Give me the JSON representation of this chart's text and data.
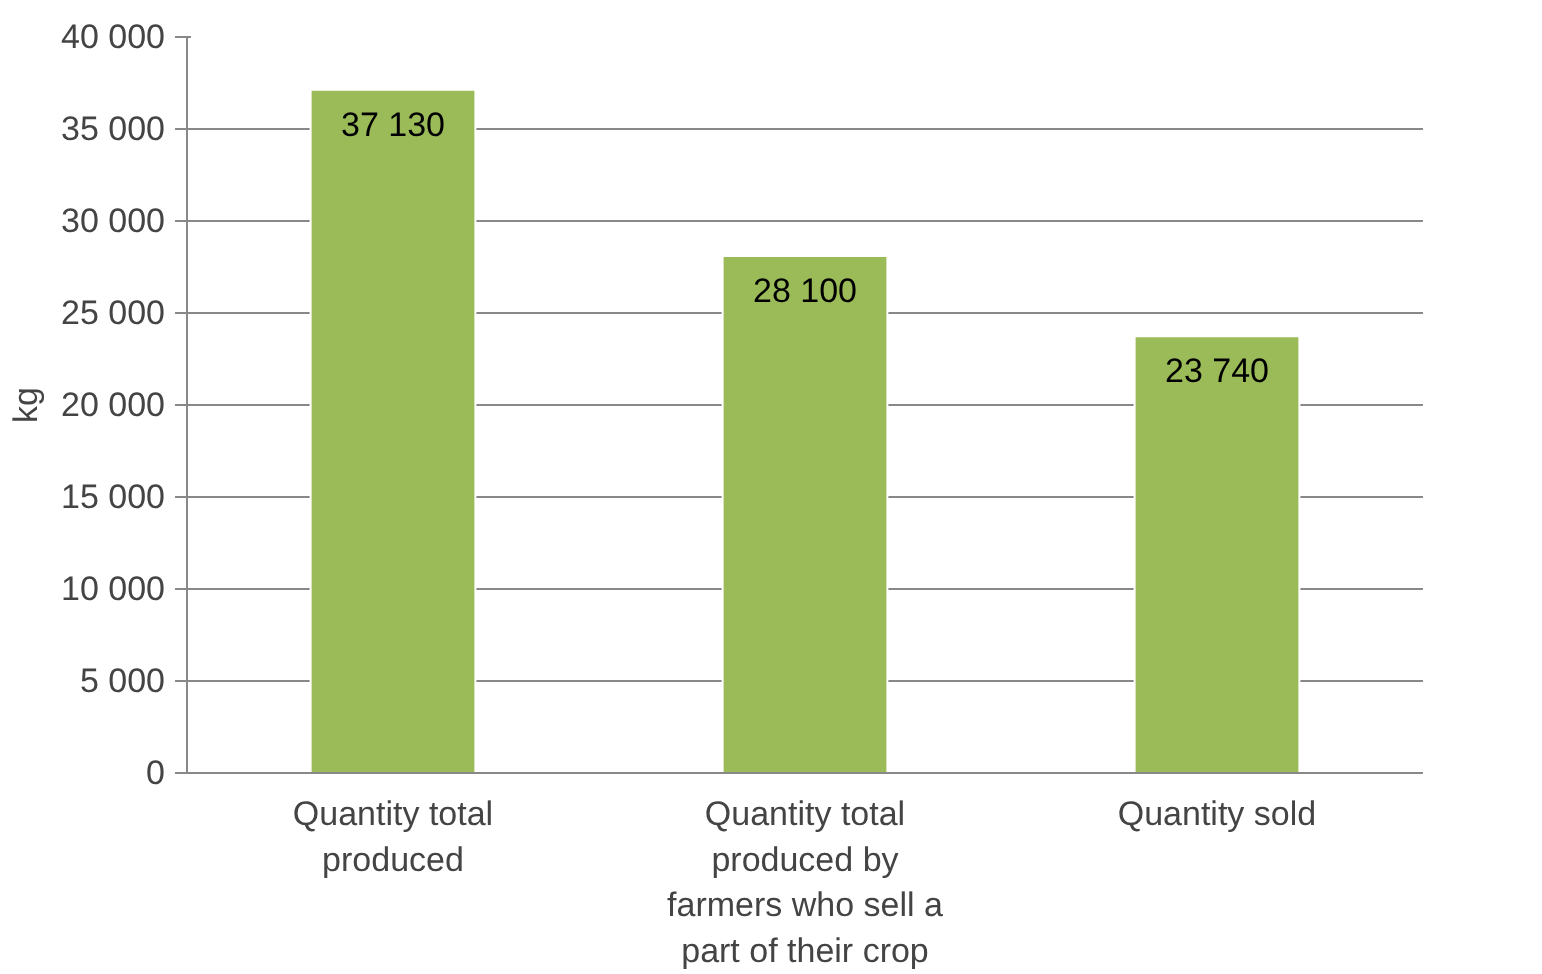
{
  "chart_data": {
    "type": "bar",
    "ylabel": "kg",
    "categories": [
      "Quantity total produced",
      "Quantity total produced by farmers who sell a part of their crop",
      "Quantity sold"
    ],
    "values": [
      37130,
      28100,
      23740
    ],
    "color": "#9bbb59",
    "value_labels": [
      "37 130",
      "28 100",
      "23 740"
    ],
    "ylim": [
      0,
      40000
    ],
    "yticks": [
      {
        "value": 0,
        "label": "0"
      },
      {
        "value": 5000,
        "label": "5 000"
      },
      {
        "value": 10000,
        "label": "10 000"
      },
      {
        "value": 15000,
        "label": "15 000"
      },
      {
        "value": 20000,
        "label": "20 000"
      },
      {
        "value": 25000,
        "label": "25 000"
      },
      {
        "value": 30000,
        "label": "30 000"
      },
      {
        "value": 35000,
        "label": "35 000"
      },
      {
        "value": 40000,
        "label": "40 000"
      }
    ],
    "grid": "y"
  }
}
